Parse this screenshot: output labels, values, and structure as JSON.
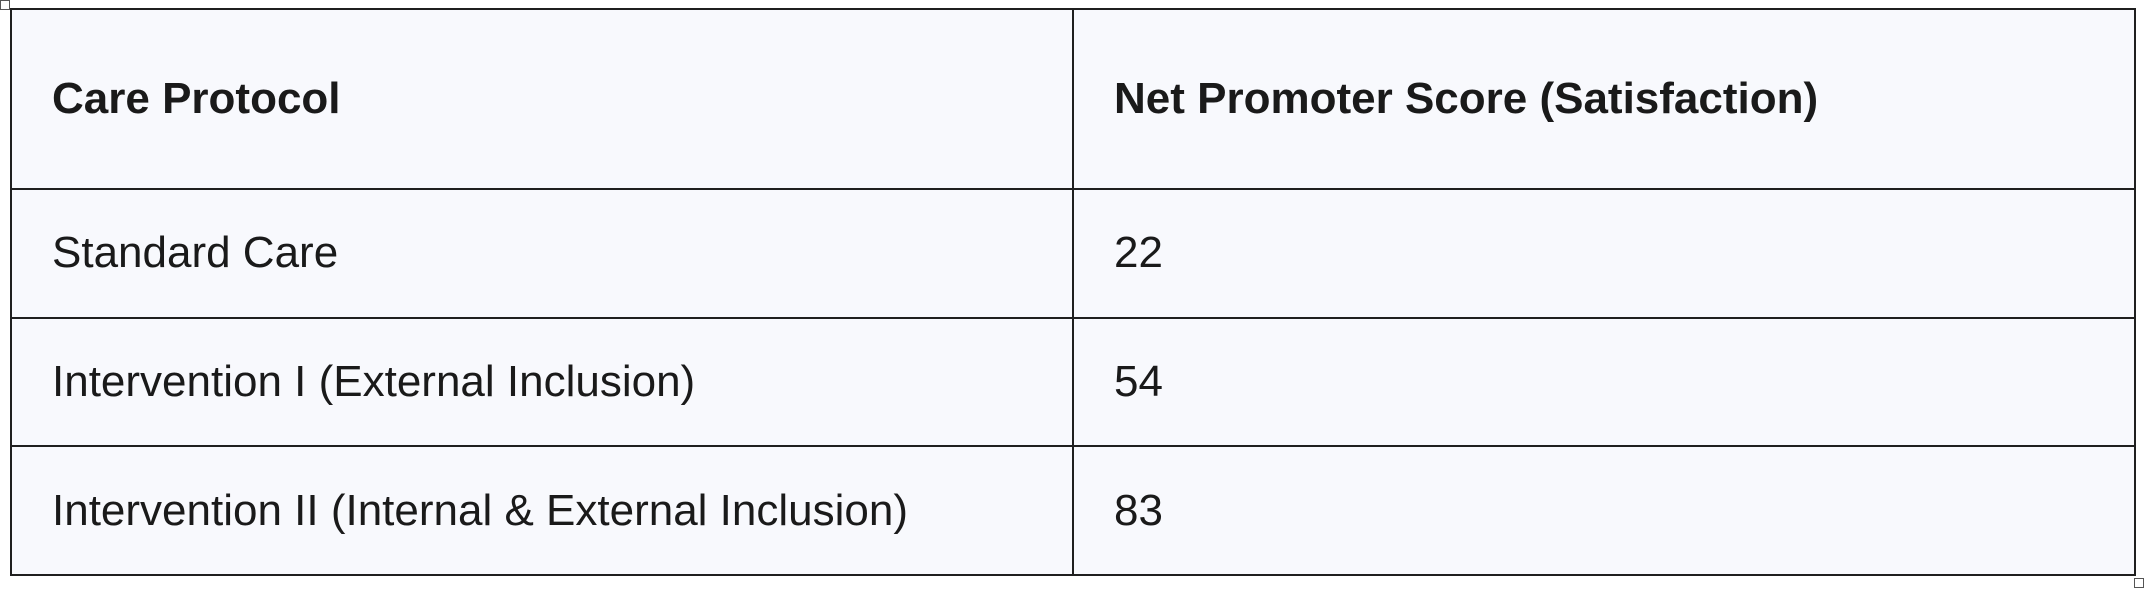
{
  "table": {
    "headers": [
      "Care Protocol",
      "Net Promoter Score (Satisfaction)"
    ],
    "rows": [
      [
        "Standard Care",
        "22"
      ],
      [
        "Intervention I (External Inclusion)",
        "54"
      ],
      [
        "Intervention II (Internal & External Inclusion)",
        "83"
      ]
    ]
  }
}
